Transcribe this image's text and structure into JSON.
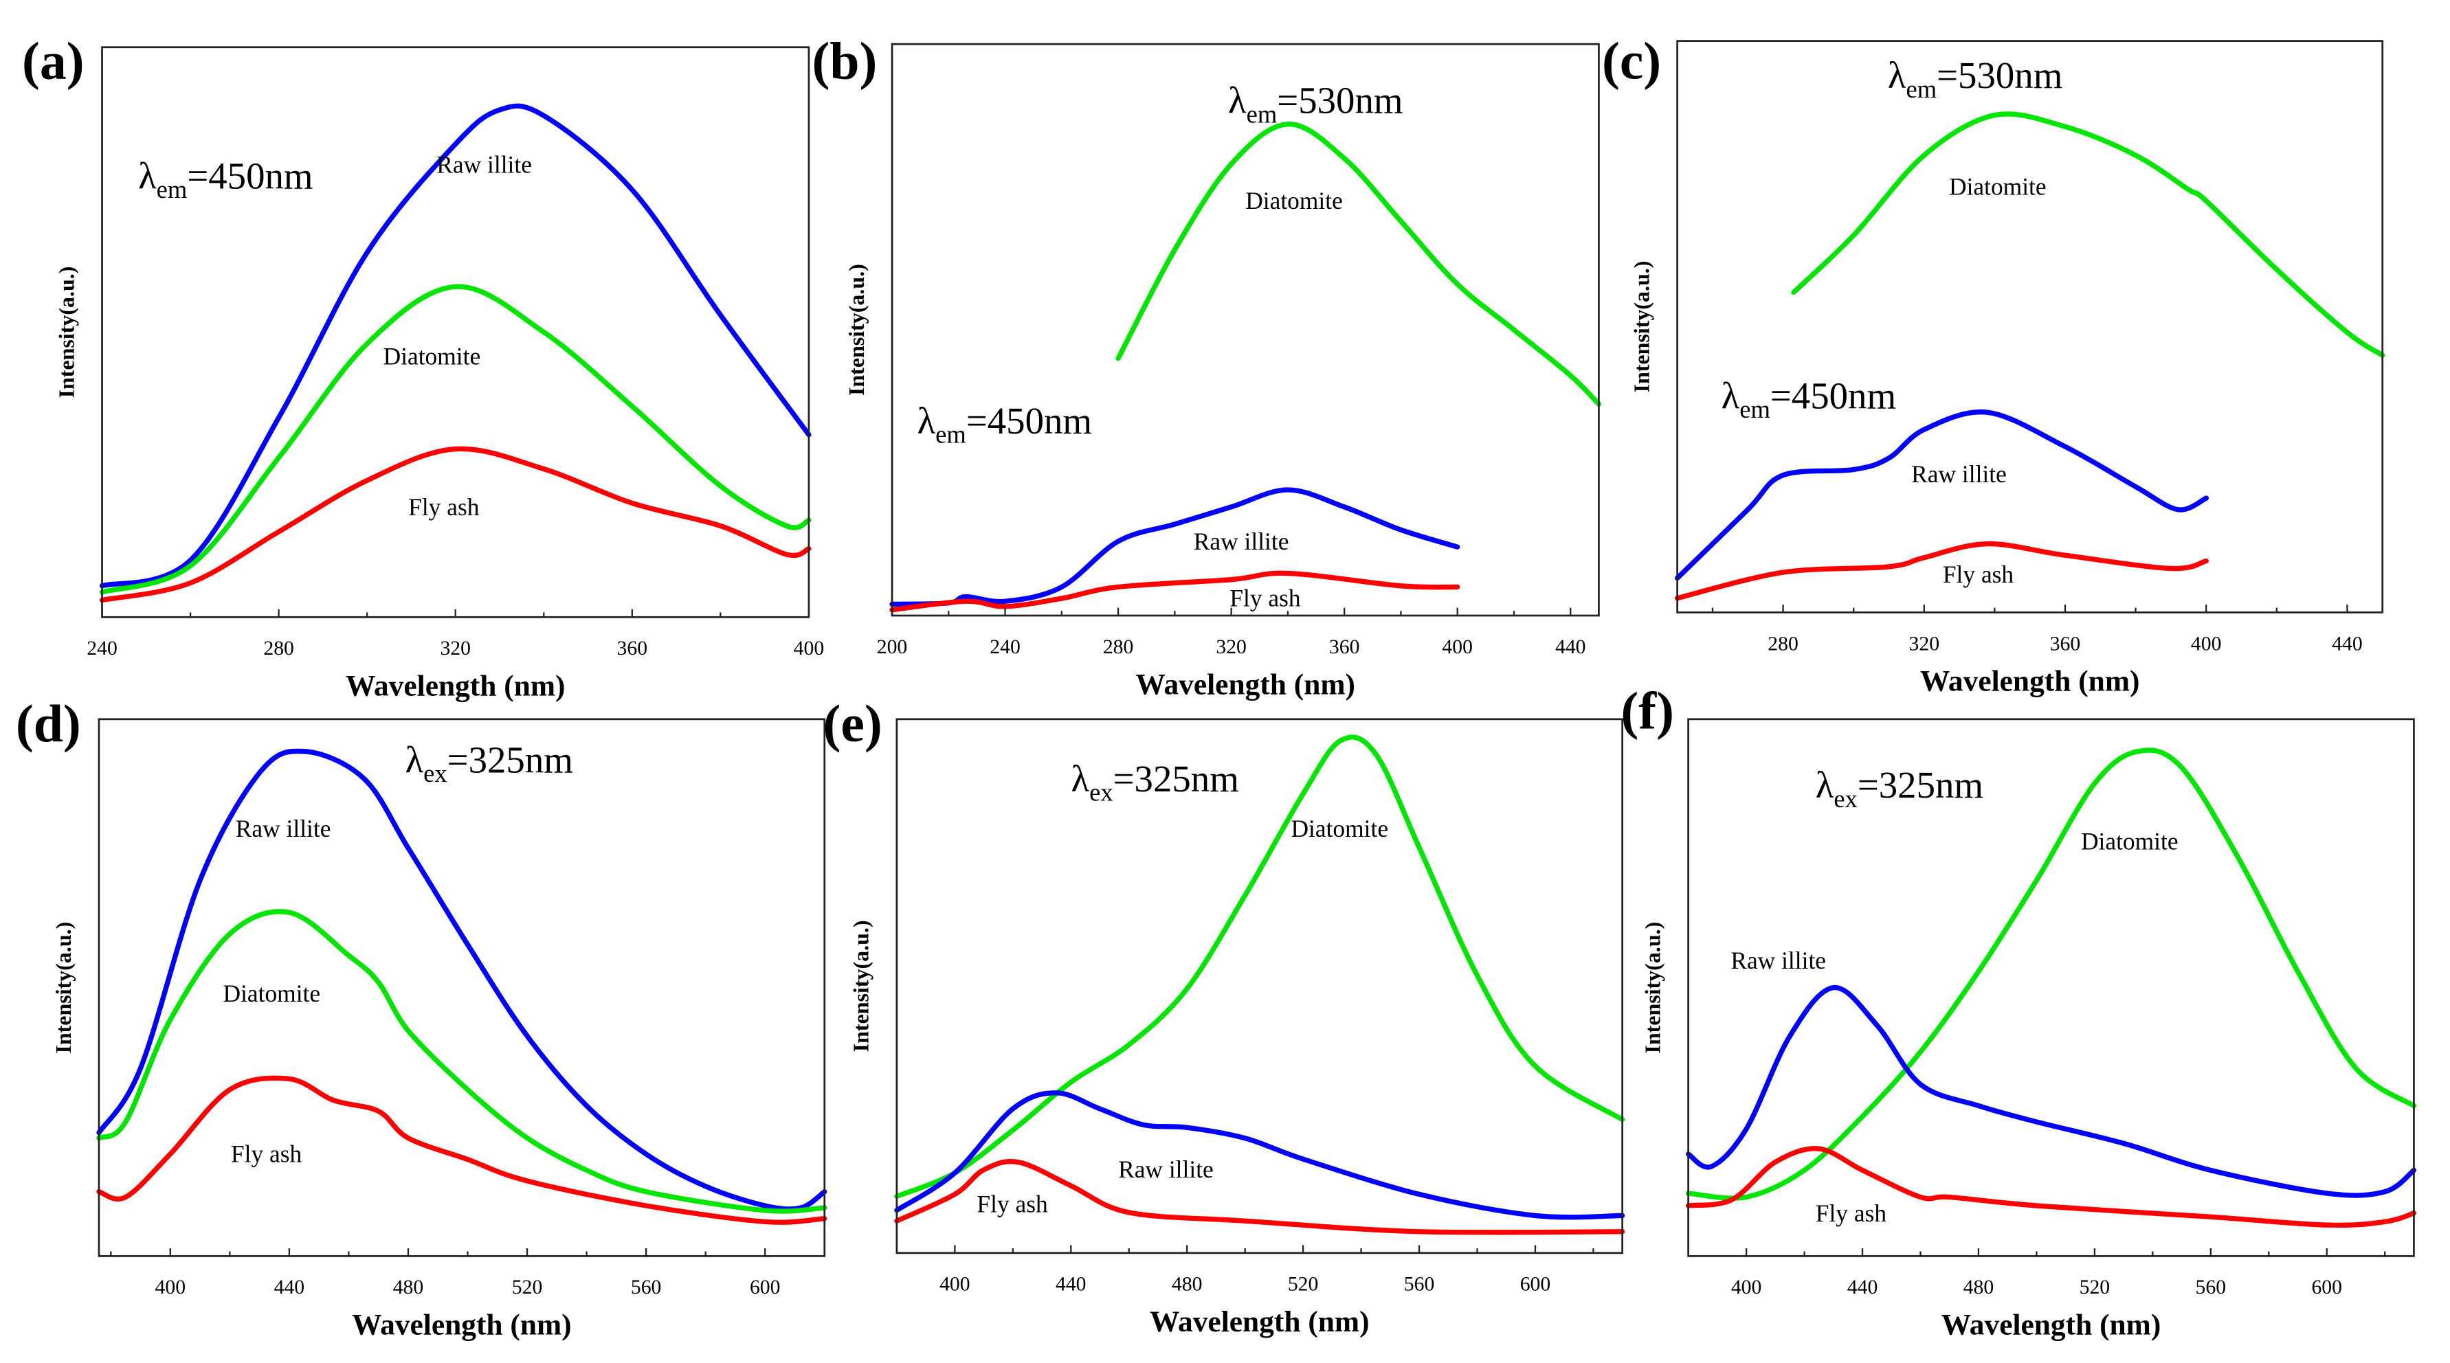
{
  "colors": {
    "Raw illite": "#0000ff",
    "Diatomite": "#00e600",
    "Fly ash": "#ff0000"
  },
  "chart_data": [
    {
      "type": "line",
      "panel": "(a)",
      "xlabel": "Wavelength (nm)",
      "ylabel": "Intensity(a.u.)",
      "xlim": [
        240,
        400
      ],
      "ylim": [
        0,
        100
      ],
      "xticks": [
        240,
        280,
        320,
        360,
        400
      ],
      "annotations": [
        {
          "symbol": "λ",
          "sub": "em",
          "value": "=450nm"
        }
      ],
      "series": [
        {
          "name": "Raw illite",
          "x": [
            240,
            260,
            280,
            300,
            320,
            330,
            340,
            360,
            380,
            400
          ],
          "y": [
            5.5,
            10,
            35,
            64,
            83,
            89,
            88,
            75,
            53,
            32
          ]
        },
        {
          "name": "Diatomite",
          "x": [
            240,
            260,
            280,
            300,
            320,
            340,
            360,
            380,
            395,
            400
          ],
          "y": [
            4.4,
            9,
            28,
            48,
            58,
            50,
            37,
            23,
            16,
            17
          ]
        },
        {
          "name": "Fly ash",
          "x": [
            240,
            260,
            280,
            300,
            320,
            340,
            360,
            380,
            395,
            400
          ],
          "y": [
            3,
            6,
            15,
            24,
            29.5,
            26,
            20,
            16,
            11,
            12
          ]
        }
      ]
    },
    {
      "type": "line",
      "panel": "(b)",
      "xlabel": "Wavelength (nm)",
      "ylabel": "Intensity(a.u.)",
      "xlim": [
        200,
        450
      ],
      "ylim": [
        0,
        100
      ],
      "xticks": [
        200,
        240,
        280,
        320,
        360,
        400,
        440
      ],
      "annotations": [
        {
          "symbol": "λ",
          "sub": "em",
          "value": "=530nm"
        },
        {
          "symbol": "λ",
          "sub": "em",
          "value": "=450nm"
        }
      ],
      "series": [
        {
          "name": "Diatomite",
          "x": [
            280,
            300,
            320,
            340,
            360,
            380,
            400,
            420,
            440,
            450
          ],
          "y": [
            45,
            64,
            79,
            86,
            80,
            69,
            58,
            50,
            42,
            37
          ]
        },
        {
          "name": "Raw illite",
          "x": [
            200,
            220,
            226,
            240,
            260,
            280,
            300,
            320,
            340,
            360,
            380,
            400
          ],
          "y": [
            2,
            2.2,
            3.3,
            2.5,
            5,
            13,
            16,
            19,
            22,
            19,
            15,
            12
          ]
        },
        {
          "name": "Fly ash",
          "x": [
            200,
            226,
            240,
            260,
            280,
            320,
            340,
            380,
            400
          ],
          "y": [
            1,
            2.5,
            1.6,
            3,
            5,
            6.3,
            7.4,
            5.2,
            5
          ]
        }
      ]
    },
    {
      "type": "line",
      "panel": "(c)",
      "xlabel": "Wavelength (nm)",
      "ylabel": "Intensity(a.u.)",
      "xlim": [
        250,
        450
      ],
      "ylim": [
        0,
        100
      ],
      "xticks": [
        280,
        320,
        360,
        400,
        440
      ],
      "annotations": [
        {
          "symbol": "λ",
          "sub": "em",
          "value": "=530nm"
        },
        {
          "symbol": "λ",
          "sub": "em",
          "value": "=450nm"
        }
      ],
      "series": [
        {
          "name": "Diatomite",
          "x": [
            283,
            300,
            320,
            340,
            360,
            380,
            395,
            400,
            420,
            440,
            450
          ],
          "y": [
            56,
            66,
            80,
            87,
            85,
            80,
            74,
            72,
            60,
            49,
            45
          ]
        },
        {
          "name": "Raw illite",
          "x": [
            250,
            270,
            280,
            300,
            310,
            320,
            338,
            360,
            380,
            392,
            400
          ],
          "y": [
            6,
            18,
            24,
            25,
            27,
            32,
            35,
            29,
            22,
            18,
            20
          ]
        },
        {
          "name": "Fly ash",
          "x": [
            250,
            280,
            310,
            320,
            338,
            360,
            390,
            400
          ],
          "y": [
            2.5,
            7,
            8,
            9.6,
            12,
            10,
            7.7,
            9
          ]
        }
      ]
    },
    {
      "type": "line",
      "panel": "(d)",
      "xlabel": "Wavelength (nm)",
      "ylabel": "Intensity(a.u.)",
      "xlim": [
        376,
        620
      ],
      "ylim": [
        0,
        100
      ],
      "xticks": [
        400,
        440,
        480,
        520,
        560,
        600
      ],
      "annotations": [
        {
          "symbol": "λ",
          "sub": "ex",
          "value": "=325nm"
        }
      ],
      "series": [
        {
          "name": "Raw illite",
          "x": [
            376,
            390,
            410,
            430,
            445,
            465,
            480,
            500,
            520,
            540,
            560,
            580,
            600,
            612,
            620
          ],
          "y": [
            23,
            35,
            70,
            90,
            94,
            89,
            76,
            58,
            41,
            28,
            19,
            13,
            9.4,
            9,
            12
          ]
        },
        {
          "name": "Diatomite",
          "x": [
            376,
            385,
            400,
            420,
            440,
            460,
            470,
            480,
            500,
            520,
            540,
            560,
            600,
            620
          ],
          "y": [
            22,
            25,
            44,
            60,
            64,
            56,
            51,
            42,
            31,
            22,
            16,
            12,
            8.5,
            9
          ]
        },
        {
          "name": "Fly ash",
          "x": [
            376,
            385,
            400,
            420,
            440,
            455,
            470,
            480,
            500,
            520,
            560,
            600,
            620
          ],
          "y": [
            12,
            11,
            19,
            31,
            33,
            29,
            27,
            22,
            18,
            14,
            9.4,
            6.4,
            7
          ]
        }
      ]
    },
    {
      "type": "line",
      "panel": "(e)",
      "xlabel": "Wavelength (nm)",
      "ylabel": "Intensity(a.u.)",
      "xlim": [
        380,
        630
      ],
      "ylim": [
        0,
        100
      ],
      "xticks": [
        400,
        440,
        480,
        520,
        560,
        600
      ],
      "annotations": [
        {
          "symbol": "λ",
          "sub": "ex",
          "value": "=325nm"
        }
      ],
      "series": [
        {
          "name": "Diatomite",
          "x": [
            380,
            400,
            420,
            440,
            460,
            480,
            500,
            520,
            533,
            545,
            560,
            580,
            600,
            630
          ],
          "y": [
            10.6,
            15,
            23,
            32,
            39,
            49.5,
            67,
            86,
            96,
            93.5,
            76,
            52,
            35,
            25
          ]
        },
        {
          "name": "Raw illite",
          "x": [
            380,
            400,
            420,
            435,
            450,
            465,
            480,
            500,
            520,
            560,
            600,
            630
          ],
          "y": [
            8,
            15,
            27,
            30,
            27,
            24,
            23.5,
            21.5,
            17.6,
            11,
            7,
            7
          ]
        },
        {
          "name": "Fly ash",
          "x": [
            380,
            400,
            410,
            422,
            440,
            460,
            500,
            560,
            630
          ],
          "y": [
            6,
            11,
            15.6,
            17,
            12.6,
            7.6,
            6,
            4,
            4
          ]
        }
      ]
    },
    {
      "type": "line",
      "panel": "(f)",
      "xlabel": "Wavelength (nm)",
      "ylabel": "Intensity(a.u.)",
      "xlim": [
        380,
        630
      ],
      "ylim": [
        0,
        100
      ],
      "xticks": [
        400,
        440,
        480,
        520,
        560,
        600
      ],
      "annotations": [
        {
          "symbol": "λ",
          "sub": "ex",
          "value": "=325nm"
        }
      ],
      "series": [
        {
          "name": "Diatomite",
          "x": [
            380,
            400,
            420,
            440,
            460,
            480,
            500,
            520,
            535,
            550,
            570,
            590,
            610,
            630
          ],
          "y": [
            11.7,
            11,
            16,
            26,
            38,
            53,
            70,
            88,
            94,
            91,
            73.7,
            53,
            35,
            28
          ]
        },
        {
          "name": "Raw illite",
          "x": [
            380,
            388,
            400,
            415,
            430,
            445,
            460,
            480,
            500,
            530,
            560,
            600,
            620,
            630
          ],
          "y": [
            19,
            16.7,
            23.7,
            41,
            50,
            43,
            32,
            28,
            25,
            21,
            16,
            11.7,
            12,
            16
          ]
        },
        {
          "name": "Fly ash",
          "x": [
            380,
            395,
            410,
            425,
            440,
            460,
            470,
            500,
            560,
            600,
            620,
            630
          ],
          "y": [
            9.4,
            10.5,
            17.5,
            20,
            16,
            11,
            11,
            9.4,
            7.3,
            5.8,
            6.4,
            8
          ]
        }
      ]
    }
  ]
}
